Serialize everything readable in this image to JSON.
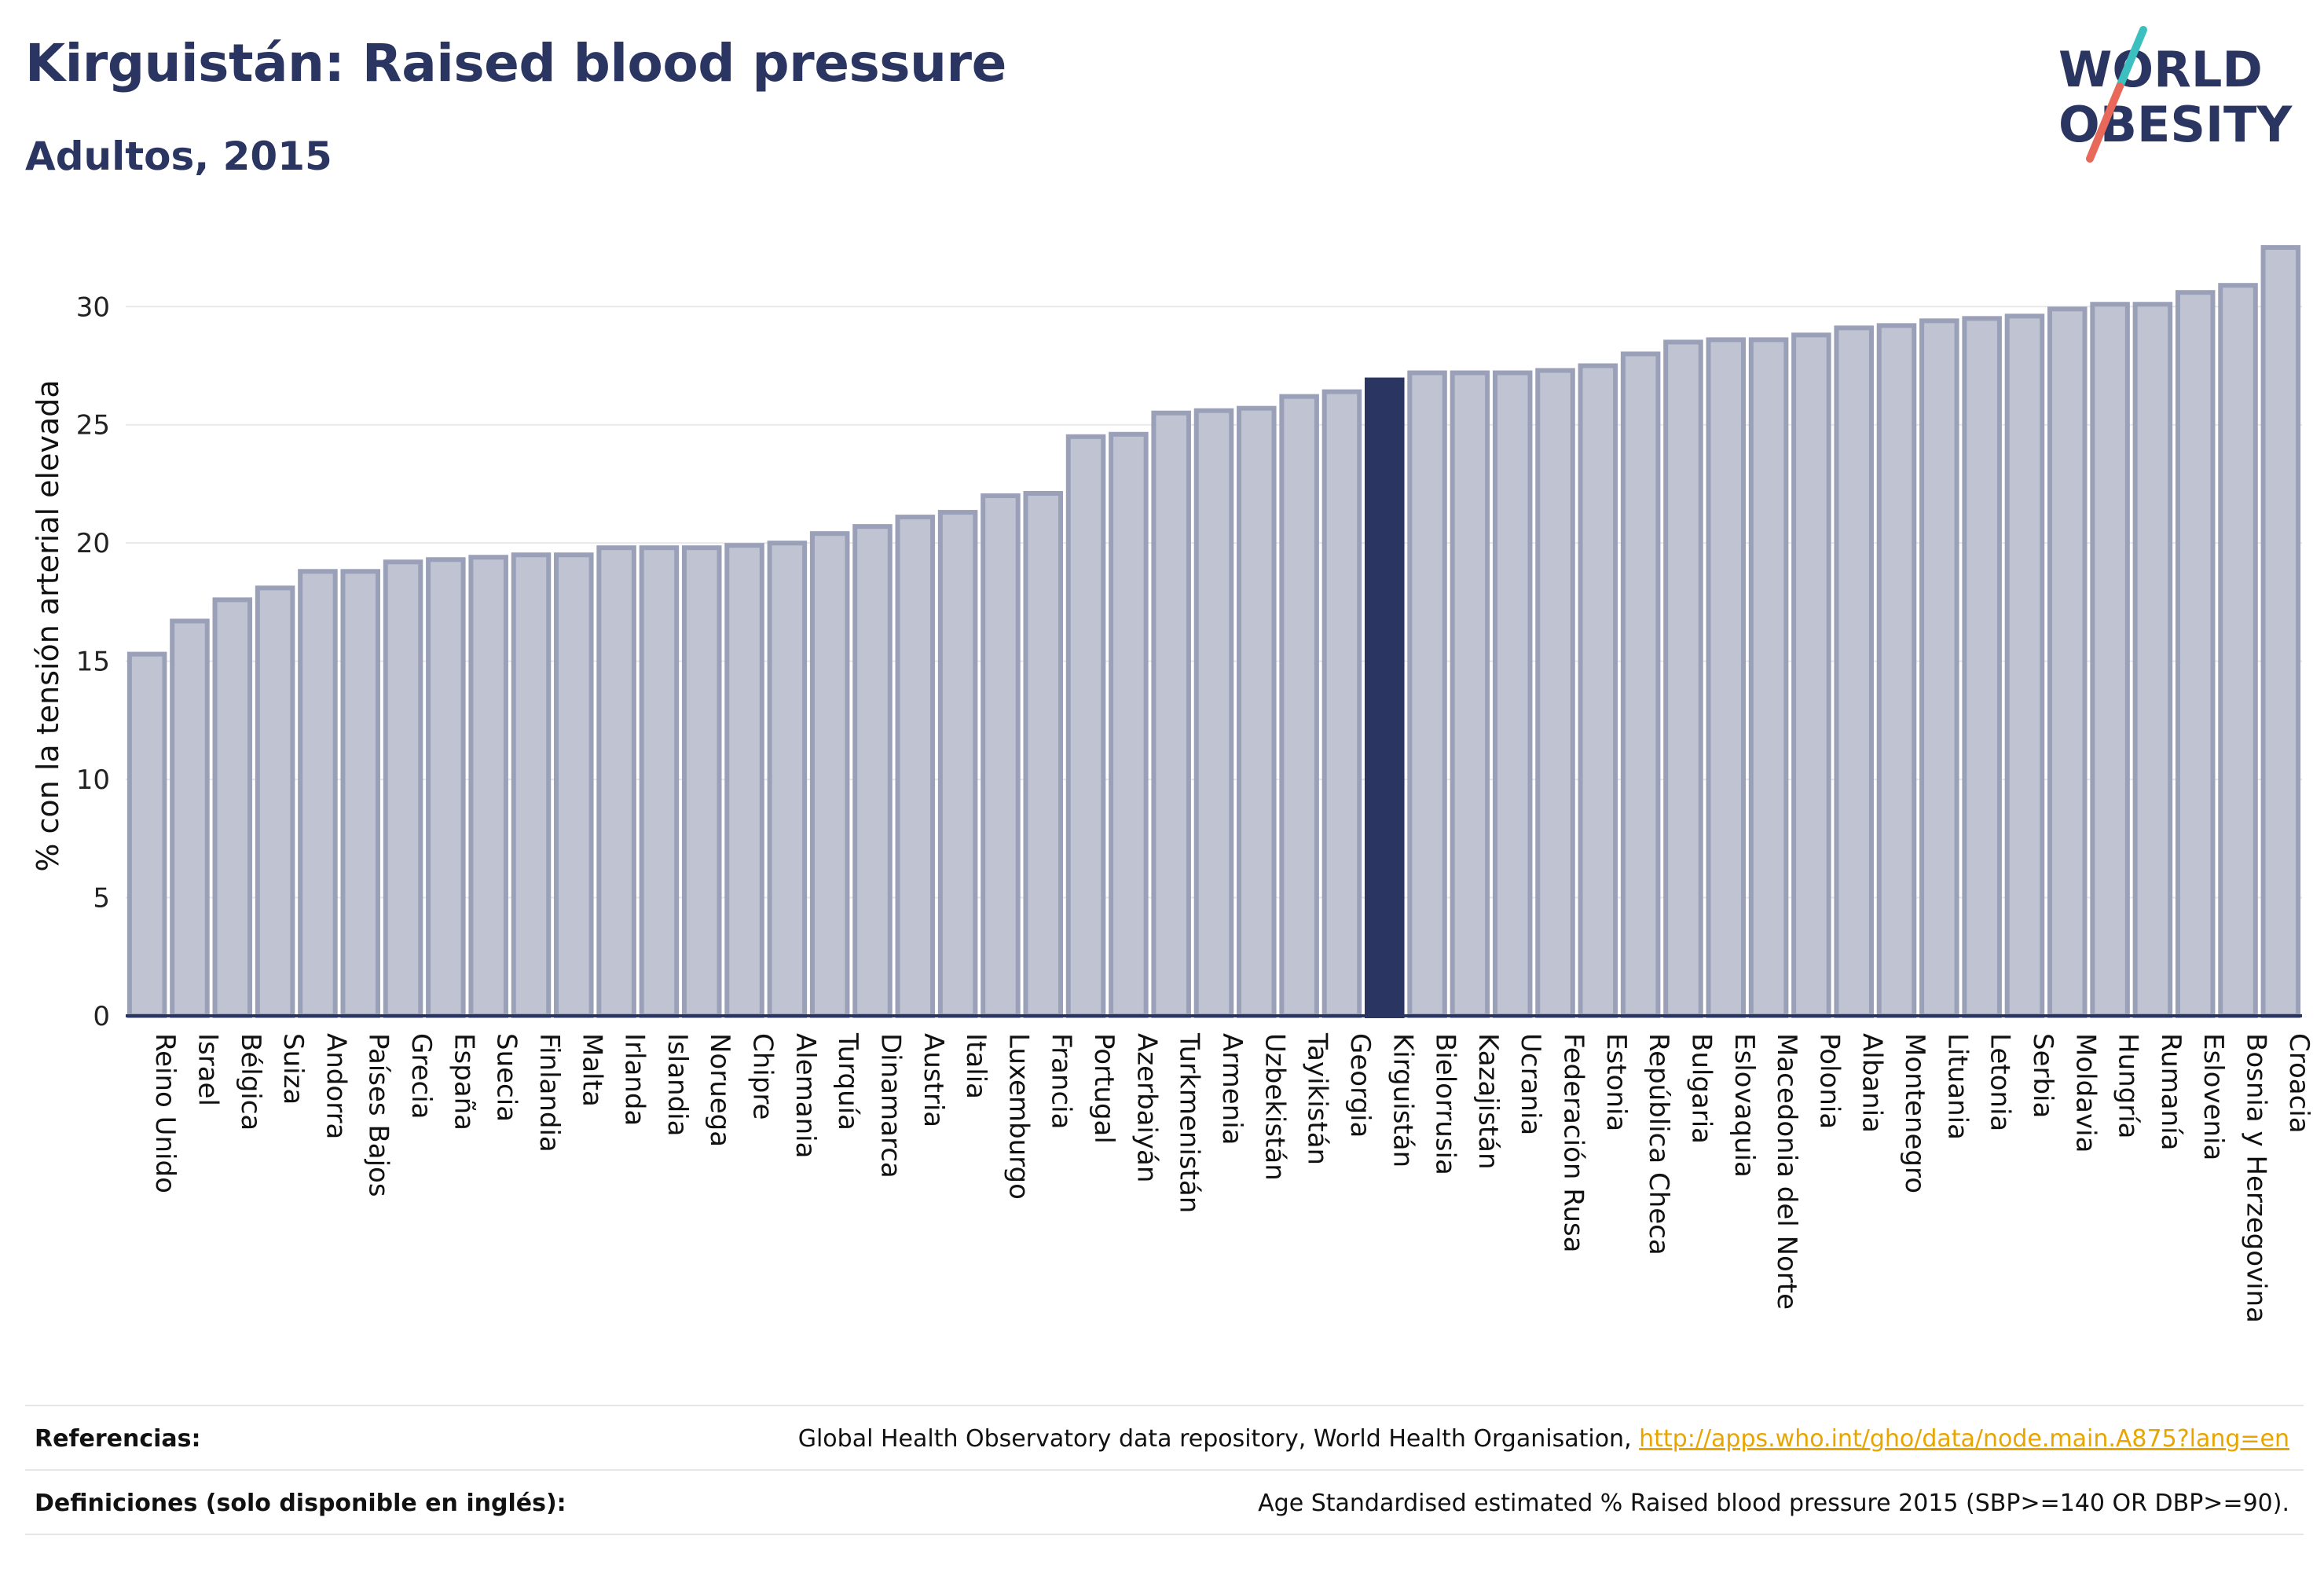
{
  "header": {
    "title": "Kirguistán: Raised blood pressure",
    "subtitle": "Adultos, 2015"
  },
  "logo": {
    "line1": "WORLD",
    "line2": "OBESITY",
    "text_color": "#2b3561",
    "slash_color_top": "#3bbfbf",
    "slash_color_bottom": "#e8695a"
  },
  "colors": {
    "bar_fill": "#c0c3d2",
    "bar_stroke": "#9aa0b8",
    "highlight_fill": "#2b3561",
    "axis": "#2b3561",
    "grid": "#e8e8e8"
  },
  "chart_data": {
    "type": "bar",
    "ylabel": "% con la tensión arterial elevada",
    "ylim": [
      0,
      33
    ],
    "yticks": [
      0,
      5,
      10,
      15,
      20,
      25,
      30
    ],
    "grid": true,
    "highlight": "Kirguistán",
    "categories": [
      "Reino Unido",
      "Israel",
      "Bélgica",
      "Suiza",
      "Andorra",
      "Países Bajos",
      "Grecia",
      "España",
      "Suecia",
      "Finlandia",
      "Malta",
      "Irlanda",
      "Islandia",
      "Noruega",
      "Chipre",
      "Alemania",
      "Turquía",
      "Dinamarca",
      "Austria",
      "Italia",
      "Luxemburgo",
      "Francia",
      "Portugal",
      "Azerbaiyán",
      "Turkmenistán",
      "Armenia",
      "Uzbekistán",
      "Tayikistán",
      "Georgia",
      "Kirguistán",
      "Bielorrusia",
      "Kazajistán",
      "Ucrania",
      "Federación Rusa",
      "Estonia",
      "República Checa",
      "Bulgaria",
      "Eslovaquia",
      "Macedonia del Norte",
      "Polonia",
      "Albania",
      "Montenegro",
      "Lituania",
      "Letonia",
      "Serbia",
      "Moldavia",
      "Hungría",
      "Rumanía",
      "Eslovenia",
      "Bosnia y Herzegovina",
      "Croacia"
    ],
    "values": [
      15.3,
      16.7,
      17.6,
      18.1,
      18.8,
      18.8,
      19.2,
      19.3,
      19.4,
      19.5,
      19.5,
      19.8,
      19.8,
      19.8,
      19.9,
      20.0,
      20.4,
      20.7,
      21.1,
      21.3,
      22.0,
      22.1,
      24.5,
      24.6,
      25.5,
      25.6,
      25.7,
      26.2,
      26.4,
      26.9,
      27.2,
      27.2,
      27.2,
      27.3,
      27.5,
      28.0,
      28.5,
      28.6,
      28.6,
      28.8,
      29.1,
      29.2,
      29.4,
      29.5,
      29.6,
      29.9,
      30.1,
      30.1,
      30.6,
      30.9,
      32.5
    ]
  },
  "footer": {
    "references_label": "Referencias:",
    "references_text": "Global Health Observatory data repository, World Health Organisation, ",
    "references_link": "http://apps.who.int/gho/data/node.main.A875?lang=en",
    "definitions_label": "Definiciones (solo disponible en inglés):",
    "definitions_text": "Age Standardised estimated % Raised blood pressure 2015 (SBP>=140 OR DBP>=90)."
  }
}
